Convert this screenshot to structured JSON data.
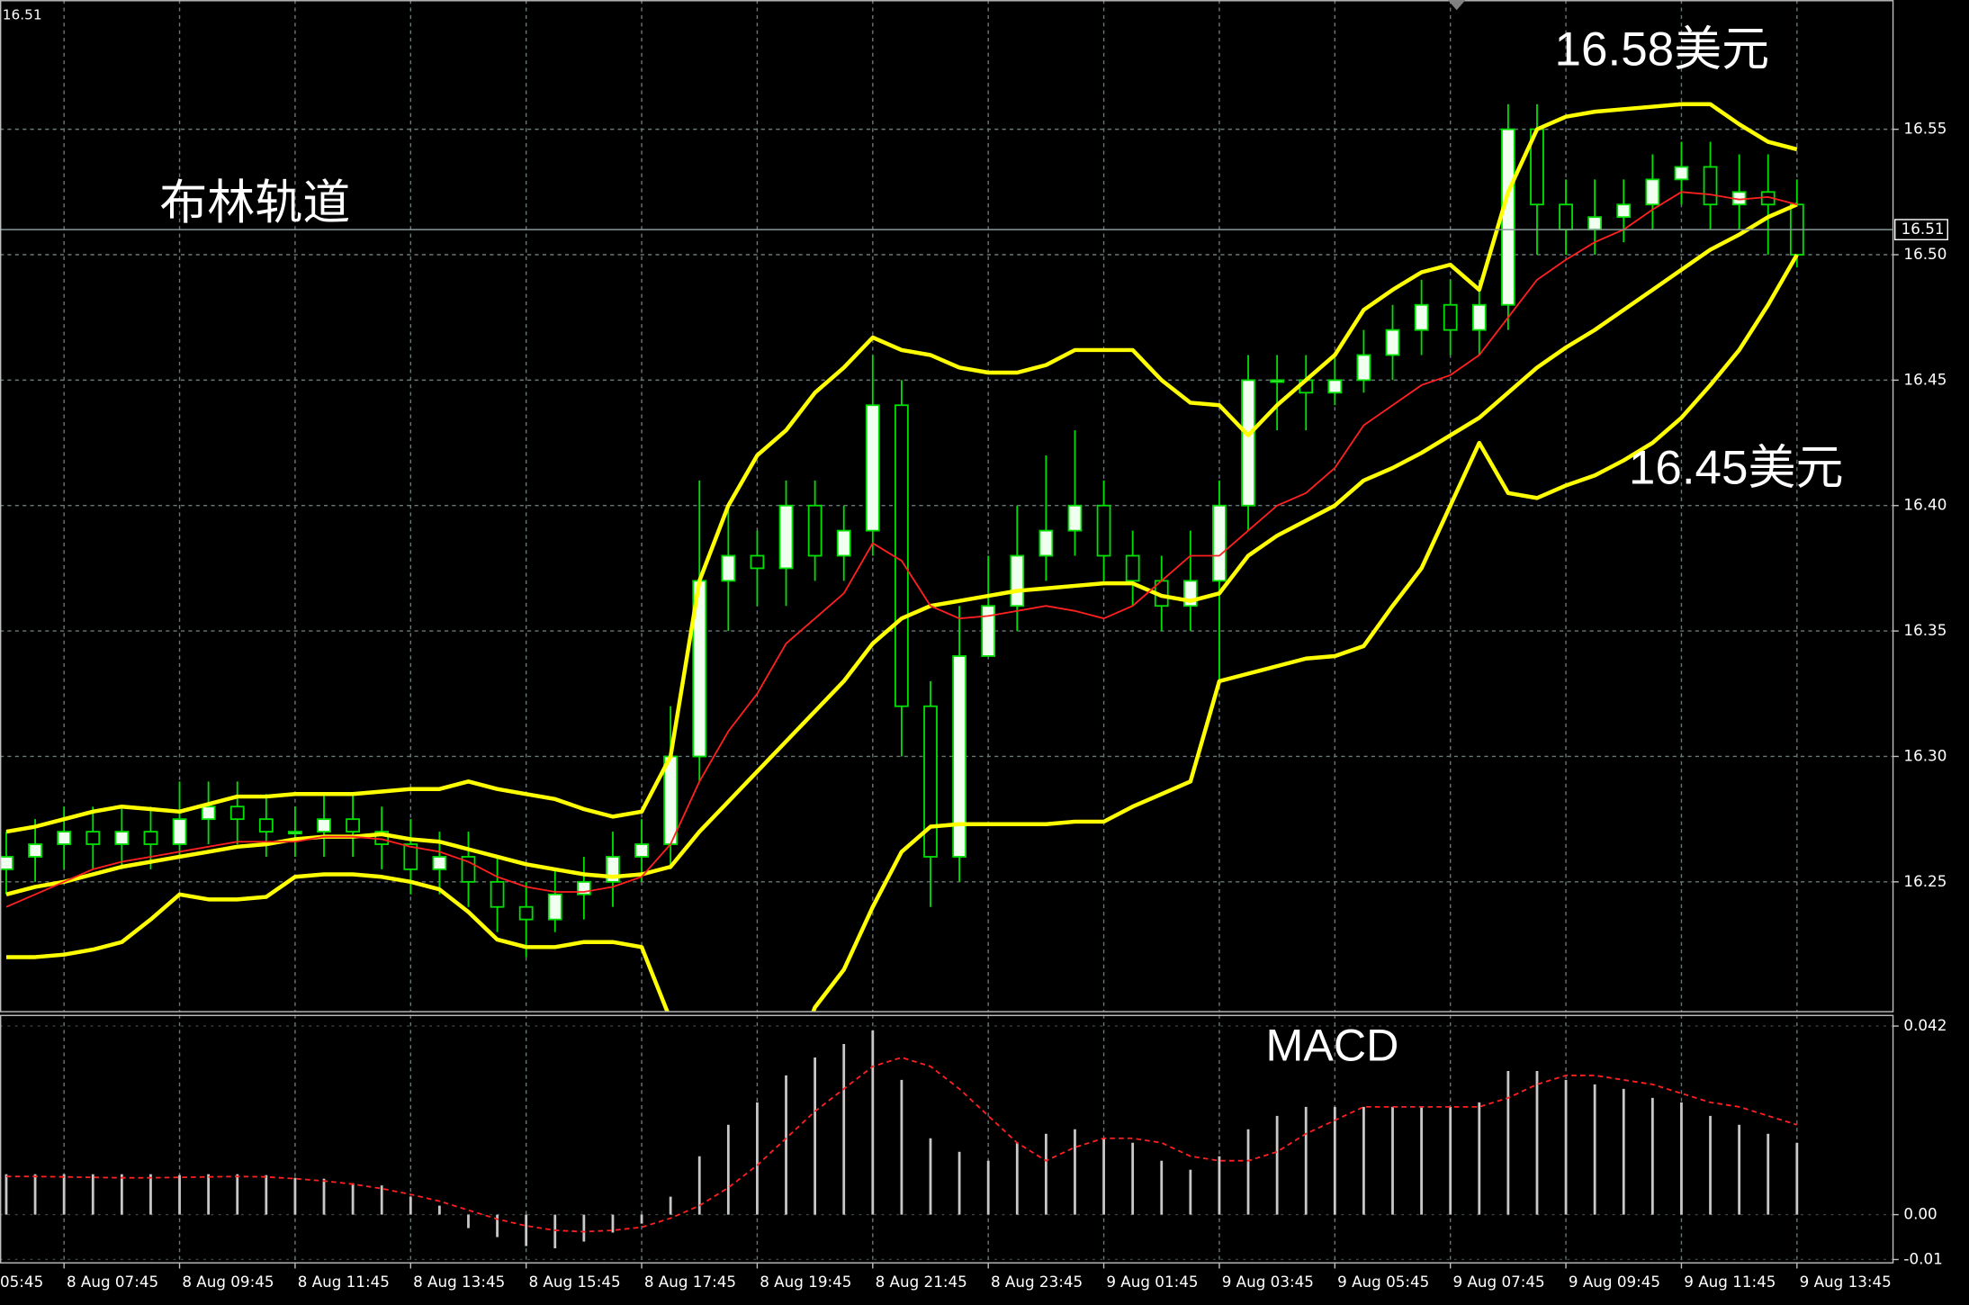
{
  "chart_data": [
    {
      "type": "candlestick",
      "current_price": 16.51,
      "annotations": [
        "布林轨道",
        "16.58美元",
        "16.45美元"
      ],
      "up_color": "#f0fff0",
      "down_color": "#000000",
      "wick_color": "#00e000",
      "ylim": [
        16.1985,
        16.6015
      ],
      "yticks": [
        {
          "value": 16.25,
          "label": "16.25"
        },
        {
          "value": 16.3,
          "label": "16.30"
        },
        {
          "value": 16.35,
          "label": "16.35"
        },
        {
          "value": 16.4,
          "label": "16.40"
        },
        {
          "value": 16.45,
          "label": "16.45"
        },
        {
          "value": 16.5,
          "label": "16.50"
        },
        {
          "value": 16.55,
          "label": "16.55"
        }
      ],
      "grid": true,
      "categories": [
        "05:45",
        null,
        "8 Aug 07:45",
        null,
        null,
        null,
        "8 Aug 09:45",
        null,
        null,
        null,
        "8 Aug 11:45",
        null,
        null,
        null,
        "8 Aug 13:45",
        null,
        null,
        null,
        "8 Aug 15:45",
        null,
        null,
        null,
        "8 Aug 17:45",
        null,
        null,
        null,
        "8 Aug 19:45",
        null,
        null,
        null,
        "8 Aug 21:45",
        null,
        null,
        null,
        "8 Aug 23:45",
        null,
        null,
        null,
        "9 Aug 01:45",
        null,
        null,
        null,
        "9 Aug 03:45",
        null,
        null,
        null,
        "9 Aug 05:45",
        null,
        null,
        null,
        "9 Aug 07:45",
        null,
        null,
        null,
        "9 Aug 09:45",
        null,
        null,
        null,
        "9 Aug 11:45",
        null,
        null,
        null,
        "9 Aug 13:45"
      ],
      "open": [
        16.255,
        16.26,
        16.265,
        16.27,
        16.265,
        16.27,
        16.265,
        16.275,
        16.28,
        16.275,
        16.27,
        16.27,
        16.275,
        16.27,
        16.265,
        16.255,
        16.26,
        16.25,
        16.24,
        16.235,
        16.245,
        16.25,
        16.26,
        16.265,
        16.3,
        16.37,
        16.38,
        16.375,
        16.4,
        16.38,
        16.39,
        16.44,
        16.32,
        16.26,
        16.34,
        16.36,
        16.38,
        16.39,
        16.4,
        16.38,
        16.37,
        16.36,
        16.37,
        16.4,
        16.45,
        16.45,
        16.445,
        16.45,
        16.46,
        16.47,
        16.48,
        16.47,
        16.48,
        16.55,
        16.52,
        16.51,
        16.515,
        16.52,
        16.53,
        16.535,
        16.52,
        16.525,
        16.52
      ],
      "high": [
        16.27,
        16.275,
        16.28,
        16.28,
        16.28,
        16.28,
        16.29,
        16.29,
        16.29,
        16.285,
        16.28,
        16.285,
        16.285,
        16.28,
        16.275,
        16.27,
        16.27,
        16.26,
        16.25,
        16.255,
        16.26,
        16.27,
        16.275,
        16.32,
        16.41,
        16.4,
        16.39,
        16.41,
        16.41,
        16.4,
        16.46,
        16.45,
        16.33,
        16.36,
        16.38,
        16.4,
        16.42,
        16.43,
        16.41,
        16.39,
        16.38,
        16.39,
        16.41,
        16.46,
        16.46,
        16.46,
        16.46,
        16.47,
        16.48,
        16.49,
        16.49,
        16.49,
        16.56,
        16.56,
        16.53,
        16.53,
        16.53,
        16.54,
        16.545,
        16.545,
        16.54,
        16.54,
        16.53
      ],
      "low": [
        16.245,
        16.25,
        16.255,
        16.255,
        16.255,
        16.255,
        16.26,
        16.265,
        16.265,
        16.26,
        16.26,
        16.26,
        16.26,
        16.255,
        16.245,
        16.245,
        16.24,
        16.23,
        16.22,
        16.23,
        16.235,
        16.24,
        16.25,
        16.255,
        16.29,
        16.35,
        16.36,
        16.36,
        16.37,
        16.37,
        16.38,
        16.3,
        16.24,
        16.25,
        16.34,
        16.35,
        16.37,
        16.38,
        16.37,
        16.36,
        16.35,
        16.35,
        16.33,
        16.39,
        16.43,
        16.43,
        16.44,
        16.445,
        16.45,
        16.46,
        16.46,
        16.46,
        16.47,
        16.5,
        16.5,
        16.5,
        16.505,
        16.51,
        16.52,
        16.51,
        16.51,
        16.5,
        16.495
      ],
      "close": [
        16.26,
        16.265,
        16.27,
        16.265,
        16.27,
        16.265,
        16.275,
        16.28,
        16.275,
        16.27,
        16.27,
        16.275,
        16.27,
        16.265,
        16.255,
        16.26,
        16.25,
        16.24,
        16.235,
        16.245,
        16.25,
        16.26,
        16.265,
        16.3,
        16.37,
        16.38,
        16.375,
        16.4,
        16.38,
        16.39,
        16.44,
        16.32,
        16.26,
        16.34,
        16.36,
        16.38,
        16.39,
        16.4,
        16.38,
        16.37,
        16.36,
        16.37,
        16.4,
        16.45,
        16.45,
        16.445,
        16.45,
        16.46,
        16.47,
        16.48,
        16.47,
        16.48,
        16.55,
        16.52,
        16.51,
        16.515,
        16.52,
        16.53,
        16.535,
        16.52,
        16.525,
        16.52,
        16.5
      ],
      "bollinger": {
        "color": "#ffff00",
        "upper": [
          16.27,
          16.272,
          16.275,
          16.278,
          16.28,
          16.279,
          16.278,
          16.281,
          16.284,
          16.284,
          16.285,
          16.285,
          16.285,
          16.286,
          16.287,
          16.287,
          16.29,
          16.287,
          16.285,
          16.283,
          16.279,
          16.276,
          16.278,
          16.3,
          16.37,
          16.4,
          16.42,
          16.43,
          16.445,
          16.455,
          16.467,
          16.462,
          16.46,
          16.455,
          16.453,
          16.453,
          16.456,
          16.462,
          16.462,
          16.462,
          16.45,
          16.441,
          16.44,
          16.428,
          16.44,
          16.45,
          16.46,
          16.478,
          16.486,
          16.493,
          16.496,
          16.486,
          16.525,
          16.55,
          16.555,
          16.557,
          16.558,
          16.559,
          16.56,
          16.56,
          16.552,
          16.545,
          16.542
        ],
        "middle": [
          16.245,
          16.248,
          16.25,
          16.253,
          16.256,
          16.258,
          16.26,
          16.262,
          16.264,
          16.265,
          16.267,
          16.268,
          16.268,
          16.269,
          16.267,
          16.266,
          16.263,
          16.26,
          16.257,
          16.255,
          16.253,
          16.252,
          16.253,
          16.256,
          16.27,
          16.282,
          16.294,
          16.306,
          16.318,
          16.33,
          16.345,
          16.355,
          16.36,
          16.362,
          16.364,
          16.366,
          16.367,
          16.368,
          16.369,
          16.369,
          16.364,
          16.362,
          16.365,
          16.38,
          16.388,
          16.394,
          16.4,
          16.41,
          16.415,
          16.421,
          16.428,
          16.435,
          16.445,
          16.455,
          16.463,
          16.47,
          16.478,
          16.486,
          16.494,
          16.502,
          16.508,
          16.515,
          16.52
        ],
        "lower": [
          16.22,
          16.22,
          16.221,
          16.223,
          16.226,
          16.235,
          16.245,
          16.243,
          16.243,
          16.244,
          16.252,
          16.253,
          16.253,
          16.252,
          16.25,
          16.247,
          16.238,
          16.227,
          16.224,
          16.224,
          16.226,
          16.226,
          16.224,
          16.195,
          16.17,
          16.155,
          16.15,
          16.17,
          16.2,
          16.215,
          16.24,
          16.262,
          16.272,
          16.273,
          16.273,
          16.273,
          16.273,
          16.274,
          16.274,
          16.28,
          16.285,
          16.29,
          16.33,
          16.333,
          16.336,
          16.339,
          16.34,
          16.344,
          16.36,
          16.375,
          16.4,
          16.425,
          16.405,
          16.403,
          16.408,
          16.412,
          16.418,
          16.425,
          16.435,
          16.448,
          16.462,
          16.48,
          16.5
        ]
      },
      "ma": {
        "color": "#ff2020",
        "values": [
          16.24,
          16.245,
          16.25,
          16.255,
          16.258,
          16.26,
          16.262,
          16.264,
          16.266,
          16.266,
          16.266,
          16.268,
          16.268,
          16.267,
          16.264,
          16.262,
          16.258,
          16.252,
          16.248,
          16.246,
          16.246,
          16.248,
          16.252,
          16.265,
          16.29,
          16.31,
          16.325,
          16.345,
          16.355,
          16.365,
          16.385,
          16.378,
          16.36,
          16.355,
          16.356,
          16.358,
          16.36,
          16.358,
          16.355,
          16.36,
          16.37,
          16.38,
          16.38,
          16.39,
          16.4,
          16.405,
          16.415,
          16.432,
          16.44,
          16.448,
          16.452,
          16.46,
          16.475,
          16.49,
          16.498,
          16.505,
          16.51,
          16.518,
          16.525,
          16.524,
          16.522,
          16.523,
          16.52
        ]
      }
    },
    {
      "type": "macd",
      "title": "MACD",
      "ylim": [
        -0.0106,
        0.0445
      ],
      "yticks": [
        0.042,
        {
          "value": 0,
          "label": "0.00"
        },
        -0.01
      ],
      "histogram": {
        "color": "#c8c8c8",
        "values": [
          0.009,
          0.009,
          0.009,
          0.009,
          0.009,
          0.009,
          0.0088,
          0.009,
          0.009,
          0.0088,
          0.0082,
          0.008,
          0.007,
          0.0065,
          0.004,
          0.002,
          -0.003,
          -0.005,
          -0.007,
          -0.0075,
          -0.006,
          -0.004,
          -0.002,
          0.004,
          0.013,
          0.02,
          0.025,
          0.031,
          0.035,
          0.038,
          0.041,
          0.03,
          0.017,
          0.014,
          0.012,
          0.016,
          0.018,
          0.019,
          0.017,
          0.016,
          0.012,
          0.01,
          0.013,
          0.019,
          0.022,
          0.024,
          0.024,
          0.024,
          0.024,
          0.024,
          0.024,
          0.025,
          0.032,
          0.032,
          0.03,
          0.029,
          0.028,
          0.026,
          0.025,
          0.022,
          0.02,
          0.018,
          0.016
        ]
      },
      "signal": {
        "color": "#ff2020",
        "values": [
          0.0085,
          0.0085,
          0.0084,
          0.0083,
          0.0082,
          0.0082,
          0.0083,
          0.0084,
          0.0085,
          0.0084,
          0.008,
          0.0075,
          0.0068,
          0.0058,
          0.0045,
          0.003,
          0.001,
          -0.001,
          -0.0025,
          -0.0035,
          -0.0038,
          -0.0035,
          -0.0028,
          -0.0008,
          0.002,
          0.006,
          0.011,
          0.017,
          0.023,
          0.028,
          0.033,
          0.035,
          0.033,
          0.028,
          0.022,
          0.016,
          0.012,
          0.015,
          0.017,
          0.017,
          0.016,
          0.013,
          0.012,
          0.012,
          0.014,
          0.018,
          0.021,
          0.024,
          0.024,
          0.024,
          0.024,
          0.024,
          0.026,
          0.029,
          0.031,
          0.031,
          0.03,
          0.029,
          0.027,
          0.025,
          0.024,
          0.022,
          0.02
        ]
      }
    }
  ]
}
